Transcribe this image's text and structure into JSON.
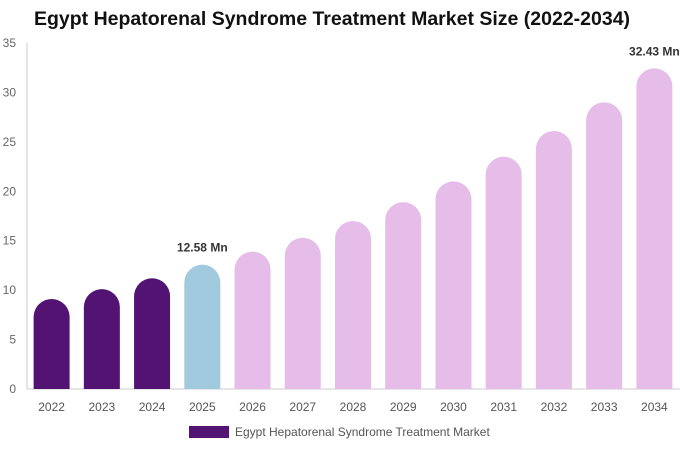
{
  "chart_data": {
    "type": "bar",
    "title": "Egypt Hepatorenal Syndrome Treatment Market Size (2022-2034)",
    "xlabel": "",
    "ylabel": "",
    "ylim": [
      0,
      35
    ],
    "yticks": [
      "0",
      "5",
      "10",
      "15",
      "20",
      "25",
      "30",
      "35"
    ],
    "categories": [
      "2022",
      "2023",
      "2024",
      "2025",
      "2026",
      "2027",
      "2028",
      "2029",
      "2030",
      "2031",
      "2032",
      "2033",
      "2034"
    ],
    "series": [
      {
        "name": "Egypt Hepatorenal Syndrome Treatment Market",
        "values": [
          9.1,
          10.1,
          11.2,
          12.58,
          13.9,
          15.3,
          17.0,
          18.9,
          21.0,
          23.5,
          26.1,
          29.0,
          32.43
        ]
      }
    ],
    "bar_colors": [
      "#521372",
      "#521372",
      "#521372",
      "#a2cadf",
      "#e6bde9",
      "#e6bde9",
      "#e6bde9",
      "#e6bde9",
      "#e6bde9",
      "#e6bde9",
      "#e6bde9",
      "#e6bde9",
      "#e6bde9"
    ],
    "data_labels": [
      {
        "category": "2025",
        "text": "12.58 Mn"
      },
      {
        "category": "2034",
        "text": "32.43 Mn"
      }
    ],
    "grid": false,
    "legend_position": "bottom",
    "legend_color": "#521372"
  }
}
